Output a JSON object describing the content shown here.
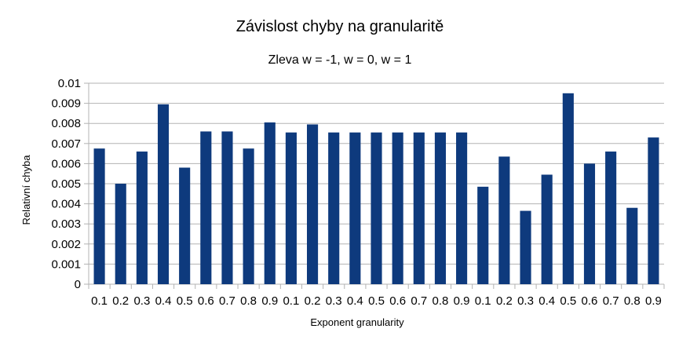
{
  "chart_data": {
    "type": "bar",
    "title": "Závislost chyby na granularitě",
    "subtitle": "Zleva w = -1, w = 0, w = 1",
    "xlabel": "Exponent granularity",
    "ylabel": "Relativní chyba",
    "ylim": [
      0,
      0.01
    ],
    "yticks": [
      "0",
      "0.001",
      "0.002",
      "0.003",
      "0.004",
      "0.005",
      "0.006",
      "0.007",
      "0.008",
      "0.009",
      "0.01"
    ],
    "grid": true,
    "legend": "none",
    "bar_color": "#0e3a7d",
    "categories": [
      "0.1",
      "0.2",
      "0.3",
      "0.4",
      "0.5",
      "0.6",
      "0.7",
      "0.8",
      "0.9",
      "0.1",
      "0.2",
      "0.3",
      "0.4",
      "0.5",
      "0.6",
      "0.7",
      "0.8",
      "0.9",
      "0.1",
      "0.2",
      "0.3",
      "0.4",
      "0.5",
      "0.6",
      "0.7",
      "0.8",
      "0.9"
    ],
    "values": [
      0.00675,
      0.005,
      0.0066,
      0.00895,
      0.0058,
      0.0076,
      0.0076,
      0.00675,
      0.00805,
      0.00755,
      0.00795,
      0.00755,
      0.00755,
      0.00755,
      0.00755,
      0.00755,
      0.00755,
      0.00755,
      0.00485,
      0.00635,
      0.00365,
      0.00545,
      0.0095,
      0.006,
      0.0066,
      0.0038,
      0.0073
    ]
  }
}
